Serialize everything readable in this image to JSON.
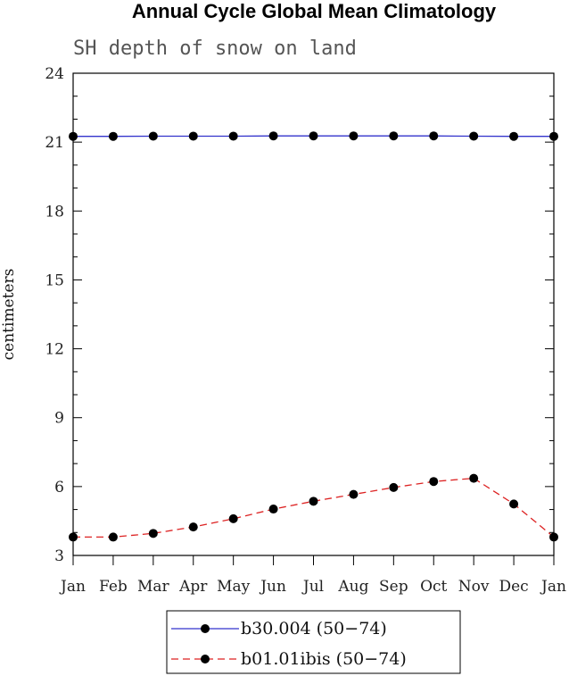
{
  "chart_data": {
    "type": "line",
    "title": "Annual Cycle Global Mean Climatology",
    "subtitle": "SH depth of snow on land",
    "ylabel": "centimeters",
    "xlabel": "",
    "categories": [
      "Jan",
      "Feb",
      "Mar",
      "Apr",
      "May",
      "Jun",
      "Jul",
      "Aug",
      "Sep",
      "Oct",
      "Nov",
      "Dec",
      "Jan"
    ],
    "ylim": [
      3,
      24
    ],
    "yticks": [
      3,
      6,
      9,
      12,
      15,
      18,
      21,
      24
    ],
    "yticks_minor_step": 1,
    "grid": false,
    "legend_position": "bottom-center",
    "series": [
      {
        "name": "b30.004 (50−74)",
        "color": "#3333cc",
        "dash": "solid",
        "marker": "filled-circle",
        "values": [
          21.25,
          21.25,
          21.26,
          21.26,
          21.26,
          21.27,
          21.27,
          21.27,
          21.27,
          21.27,
          21.26,
          21.25,
          21.25
        ]
      },
      {
        "name": "b01.01ibis (50−74)",
        "color": "#dd2222",
        "dash": "dashed",
        "marker": "filled-circle",
        "values": [
          3.8,
          3.8,
          3.96,
          4.24,
          4.6,
          5.02,
          5.36,
          5.66,
          5.96,
          6.22,
          6.36,
          5.24,
          3.8
        ]
      }
    ]
  }
}
